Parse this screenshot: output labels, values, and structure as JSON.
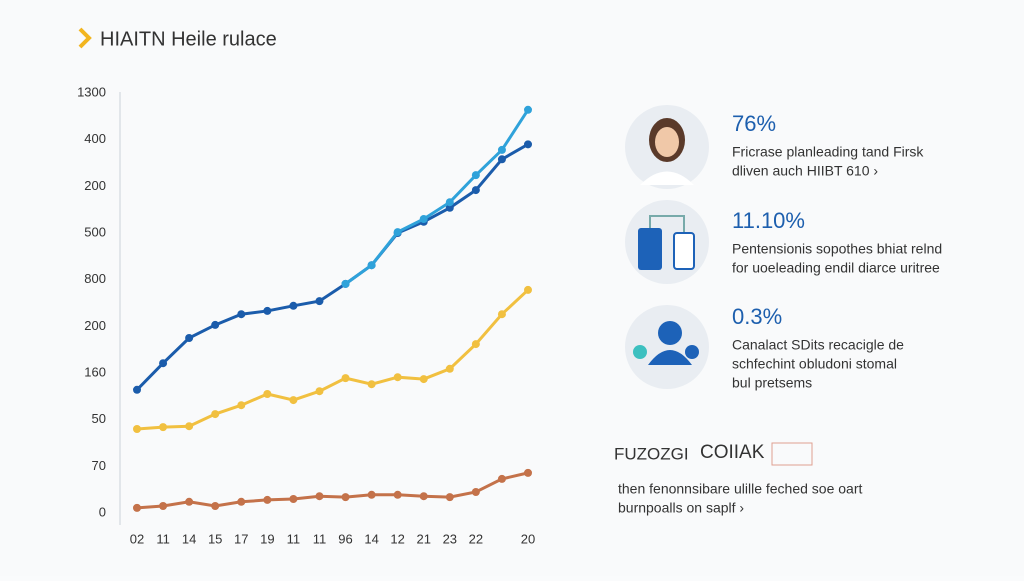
{
  "chart_data": {
    "type": "line",
    "title": "HIAITN Heile rulace",
    "categories": [
      "02",
      "11",
      "14",
      "15",
      "17",
      "19",
      "11",
      "11",
      "96",
      "14",
      "12",
      "21",
      "23",
      "22",
      null,
      "20"
    ],
    "series": [
      {
        "name": "series-dark",
        "color": "#1b5cab",
        "values": [
          2.64,
          3.21,
          3.75,
          4.03,
          4.26,
          4.33,
          4.44,
          4.54,
          4.91,
          5.31,
          6.0,
          6.24,
          6.54,
          6.92,
          7.58,
          7.9
        ]
      },
      {
        "name": "series-light",
        "color": "#2fa2da",
        "values": [
          null,
          null,
          null,
          null,
          null,
          null,
          null,
          null,
          4.91,
          5.31,
          6.02,
          6.3,
          6.66,
          7.24,
          7.78,
          8.64
        ]
      },
      {
        "name": "series-yellow",
        "color": "#f1c040",
        "values": [
          1.8,
          1.84,
          1.86,
          2.12,
          2.31,
          2.55,
          2.42,
          2.61,
          2.89,
          2.76,
          2.91,
          2.87,
          3.09,
          3.62,
          4.26,
          4.78
        ]
      },
      {
        "name": "series-brown",
        "color": "#c4724a",
        "values": [
          0.11,
          0.15,
          0.24,
          0.15,
          0.24,
          0.28,
          0.3,
          0.36,
          0.34,
          0.39,
          0.39,
          0.36,
          0.34,
          0.45,
          0.73,
          0.86
        ]
      }
    ],
    "ylim": [
      0,
      9
    ],
    "yticks": [
      {
        "value": 0,
        "label": "0"
      },
      {
        "value": 1,
        "label": "70"
      },
      {
        "value": 2,
        "label": "50"
      },
      {
        "value": 3,
        "label": "160"
      },
      {
        "value": 4,
        "label": "200"
      },
      {
        "value": 5,
        "label": "800"
      },
      {
        "value": 6,
        "label": "500"
      },
      {
        "value": 7,
        "label": "200"
      },
      {
        "value": 8,
        "label": "400"
      },
      {
        "value": 9,
        "label": "1300"
      }
    ]
  },
  "stats": [
    {
      "value": "76%",
      "lines": [
        "Fricrase planleading tand Firsk",
        "dliven auch HIIBT 610 ›"
      ]
    },
    {
      "value": "11.10%",
      "lines": [
        "Pentensionis sopothes bhiat relnd",
        "for uoeleading endil diarce uritree"
      ]
    },
    {
      "value": "0.3%",
      "lines": [
        "Canalact SDits recacigle de",
        "schfechint obludoni stomal",
        "bul pretsems"
      ]
    }
  ],
  "footer": {
    "brand": "FUZOZGI",
    "brand2": "COIIAK",
    "lines": [
      "then fenonnsibare ulille feched soe oart",
      "burnpoalls on saplf ›"
    ]
  }
}
